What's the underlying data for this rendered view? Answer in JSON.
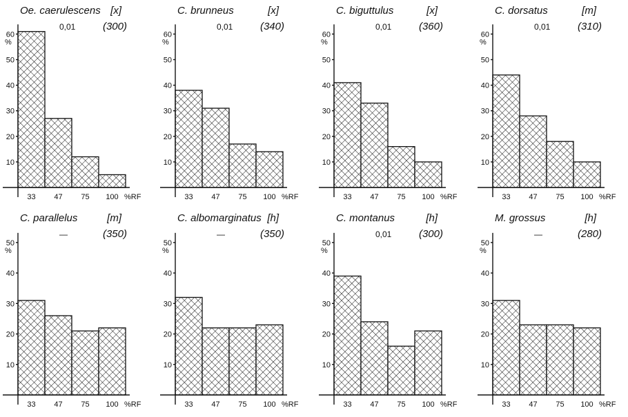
{
  "chart_data": [
    {
      "type": "bar",
      "title": "Oe. caerulescens",
      "tag": "[x]",
      "significance": "0,01",
      "sample": "(300)",
      "categories": [
        "33",
        "47",
        "75",
        "100"
      ],
      "values": [
        61,
        27,
        12,
        5
      ],
      "ylabel": "%",
      "xunit": "%RF",
      "yticks": [
        10,
        20,
        30,
        40,
        50,
        60
      ],
      "ylim": [
        0,
        62
      ],
      "grid": false
    },
    {
      "type": "bar",
      "title": "C. brunneus",
      "tag": "[x]",
      "significance": "0,01",
      "sample": "(340)",
      "categories": [
        "33",
        "47",
        "75",
        "100"
      ],
      "values": [
        38,
        31,
        17,
        14
      ],
      "ylabel": "%",
      "xunit": "%RF",
      "yticks": [
        10,
        20,
        30,
        40,
        50,
        60
      ],
      "ylim": [
        0,
        62
      ],
      "grid": false
    },
    {
      "type": "bar",
      "title": "C. biguttulus",
      "tag": "[x]",
      "significance": "0,01",
      "sample": "(360)",
      "categories": [
        "33",
        "47",
        "75",
        "100"
      ],
      "values": [
        41,
        33,
        16,
        10
      ],
      "ylabel": "%",
      "xunit": "%RF",
      "yticks": [
        10,
        20,
        30,
        40,
        50,
        60
      ],
      "ylim": [
        0,
        62
      ],
      "grid": false
    },
    {
      "type": "bar",
      "title": "C. dorsatus",
      "tag": "[m]",
      "significance": "0,01",
      "sample": "(310)",
      "categories": [
        "33",
        "47",
        "75",
        "100"
      ],
      "values": [
        44,
        28,
        18,
        10
      ],
      "ylabel": "%",
      "xunit": "%RF",
      "yticks": [
        10,
        20,
        30,
        40,
        50,
        60
      ],
      "ylim": [
        0,
        62
      ],
      "grid": false
    },
    {
      "type": "bar",
      "title": "C. parallelus",
      "tag": "[m]",
      "significance": "—",
      "sample": "(350)",
      "categories": [
        "33",
        "47",
        "75",
        "100"
      ],
      "values": [
        31,
        26,
        21,
        22
      ],
      "ylabel": "%",
      "xunit": "%RF",
      "yticks": [
        10,
        20,
        30,
        40,
        50
      ],
      "ylim": [
        0,
        52
      ],
      "grid": false
    },
    {
      "type": "bar",
      "title": "C. albomarginatus",
      "tag": "[h]",
      "significance": "—",
      "sample": "(350)",
      "categories": [
        "33",
        "47",
        "75",
        "100"
      ],
      "values": [
        32,
        22,
        22,
        23
      ],
      "ylabel": "%",
      "xunit": "%RF",
      "yticks": [
        10,
        20,
        30,
        40,
        50
      ],
      "ylim": [
        0,
        52
      ],
      "grid": false
    },
    {
      "type": "bar",
      "title": "C. montanus",
      "tag": "[h]",
      "significance": "0,01",
      "sample": "(300)",
      "categories": [
        "33",
        "47",
        "75",
        "100"
      ],
      "values": [
        39,
        24,
        16,
        21
      ],
      "ylabel": "%",
      "xunit": "%RF",
      "yticks": [
        10,
        20,
        30,
        40,
        50
      ],
      "ylim": [
        0,
        52
      ],
      "grid": false
    },
    {
      "type": "bar",
      "title": "M. grossus",
      "tag": "[h]",
      "significance": "—",
      "sample": "(280)",
      "categories": [
        "33",
        "47",
        "75",
        "100"
      ],
      "values": [
        31,
        23,
        23,
        22
      ],
      "ylabel": "%",
      "xunit": "%RF",
      "yticks": [
        10,
        20,
        30,
        40,
        50
      ],
      "ylim": [
        0,
        52
      ],
      "grid": false
    }
  ]
}
